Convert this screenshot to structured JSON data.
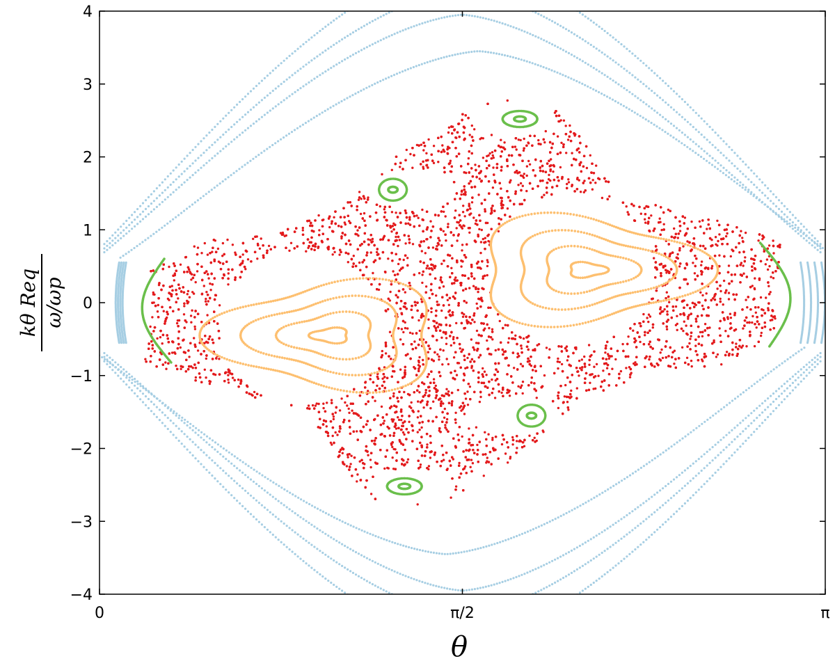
{
  "chart_data": {
    "type": "scatter",
    "title": "",
    "xlabel": "θ",
    "ylabel": {
      "numerator": "kθ Req",
      "denominator": "ω/ωp"
    },
    "xlim": [
      0,
      3.14159
    ],
    "ylim": [
      -4,
      4
    ],
    "x_ticks": [
      {
        "value": 0,
        "label": "0"
      },
      {
        "value": 1.5708,
        "label": "π/2"
      },
      {
        "value": 3.14159,
        "label": "π"
      }
    ],
    "y_ticks": [
      {
        "value": 4,
        "label": "4"
      },
      {
        "value": 3,
        "label": "3"
      },
      {
        "value": 2,
        "label": "2"
      },
      {
        "value": 1,
        "label": "1"
      },
      {
        "value": 0,
        "label": "0"
      },
      {
        "value": -1,
        "label": "−1"
      },
      {
        "value": -2,
        "label": "−2"
      },
      {
        "value": -3,
        "label": "−3"
      },
      {
        "value": -4,
        "label": "−4"
      }
    ],
    "grid": false,
    "legend": "none",
    "colors": {
      "outer": "#a6cee3",
      "chaotic": "#e31a1c",
      "island": "#fdbf6f",
      "small_island": "#6abf4b"
    },
    "series": [
      {
        "role": "outer",
        "color": "#a6cee3",
        "curves": [
          {
            "kind": "hyperbola",
            "a": 0.3,
            "sharp": 1.8,
            "s": 0.19
          },
          {
            "kind": "hyperbola",
            "a": 0.25,
            "sharp": 2.1,
            "s": 0.18
          },
          {
            "kind": "hyperbola",
            "a": 0.21,
            "sharp": 2.3,
            "s": 0.17
          },
          {
            "kind": "hyperbola",
            "a": 0.17,
            "sharp": 2.6,
            "s": 0.16
          }
        ]
      },
      {
        "role": "chaotic",
        "color": "#e31a1c",
        "region": [
          [
            0.22,
            0.45
          ],
          [
            0.45,
            0.85
          ],
          [
            0.75,
            0.95
          ],
          [
            1.05,
            1.35
          ],
          [
            1.3,
            2.05
          ],
          [
            1.57,
            2.6
          ],
          [
            1.72,
            2.82
          ],
          [
            1.95,
            2.72
          ],
          [
            2.08,
            2.3
          ],
          [
            2.25,
            1.45
          ],
          [
            2.55,
            1.25
          ],
          [
            2.95,
            0.85
          ],
          [
            2.92,
            -0.45
          ],
          [
            2.7,
            -0.85
          ],
          [
            2.38,
            -0.95
          ],
          [
            2.08,
            -1.35
          ],
          [
            1.84,
            -2.05
          ],
          [
            1.57,
            -2.6
          ],
          [
            1.45,
            -2.82
          ],
          [
            1.19,
            -2.72
          ],
          [
            1.06,
            -2.3
          ],
          [
            0.89,
            -1.45
          ],
          [
            0.6,
            -1.25
          ],
          [
            0.19,
            -0.85
          ],
          [
            0.22,
            -0.45
          ]
        ],
        "holes": [
          {
            "x": 0.88,
            "y": -0.35,
            "rx": 0.36,
            "ry": 1.05
          },
          {
            "x": 2.04,
            "y": 0.45,
            "rx": 0.36,
            "ry": 1.05
          },
          {
            "x": 1.79,
            "y": 2.52,
            "rx": 0.19,
            "ry": 0.25
          },
          {
            "x": 1.35,
            "y": 1.55,
            "rx": 0.2,
            "ry": 0.26
          },
          {
            "x": 1.79,
            "y": -1.55,
            "rx": 0.2,
            "ry": 0.26
          },
          {
            "x": 1.35,
            "y": -2.52,
            "rx": 0.19,
            "ry": 0.25
          }
        ]
      },
      {
        "role": "island",
        "color": "#fdbf6f",
        "islands": [
          {
            "cx": 1.0,
            "cy": -0.45,
            "tri_dir": -1,
            "rings": [
              {
                "rx": 0.08,
                "ry": 0.1
              },
              {
                "rx": 0.2,
                "ry": 0.3
              },
              {
                "rx": 0.33,
                "ry": 0.5
              },
              {
                "rx": 0.48,
                "ry": 0.72
              }
            ]
          },
          {
            "cx": 2.11,
            "cy": 0.45,
            "tri_dir": 1,
            "rings": [
              {
                "rx": 0.08,
                "ry": 0.1
              },
              {
                "rx": 0.2,
                "ry": 0.3
              },
              {
                "rx": 0.33,
                "ry": 0.5
              },
              {
                "rx": 0.48,
                "ry": 0.72
              }
            ]
          }
        ]
      },
      {
        "role": "small_island",
        "color": "#6abf4b",
        "islands": [
          {
            "cx": 1.82,
            "cy": 2.52,
            "rings": [
              {
                "rx": 0.025,
                "ry": 0.035
              },
              {
                "rx": 0.075,
                "ry": 0.11
              }
            ]
          },
          {
            "cx": 1.27,
            "cy": 1.55,
            "rings": [
              {
                "rx": 0.02,
                "ry": 0.04
              },
              {
                "rx": 0.06,
                "ry": 0.15
              }
            ]
          },
          {
            "cx": 1.87,
            "cy": -1.55,
            "rings": [
              {
                "rx": 0.02,
                "ry": 0.04
              },
              {
                "rx": 0.06,
                "ry": 0.15
              }
            ]
          },
          {
            "cx": 1.32,
            "cy": -2.52,
            "rings": [
              {
                "rx": 0.025,
                "ry": 0.035
              },
              {
                "rx": 0.075,
                "ry": 0.11
              }
            ]
          }
        ],
        "arcs": [
          {
            "x0": 0.28,
            "y0": 0.6,
            "x1": 0.31,
            "y1": -0.82,
            "bulge": -0.22
          },
          {
            "x0": 2.86,
            "y0": 0.82,
            "x1": 2.9,
            "y1": -0.6,
            "bulge": 0.22
          }
        ]
      }
    ]
  }
}
